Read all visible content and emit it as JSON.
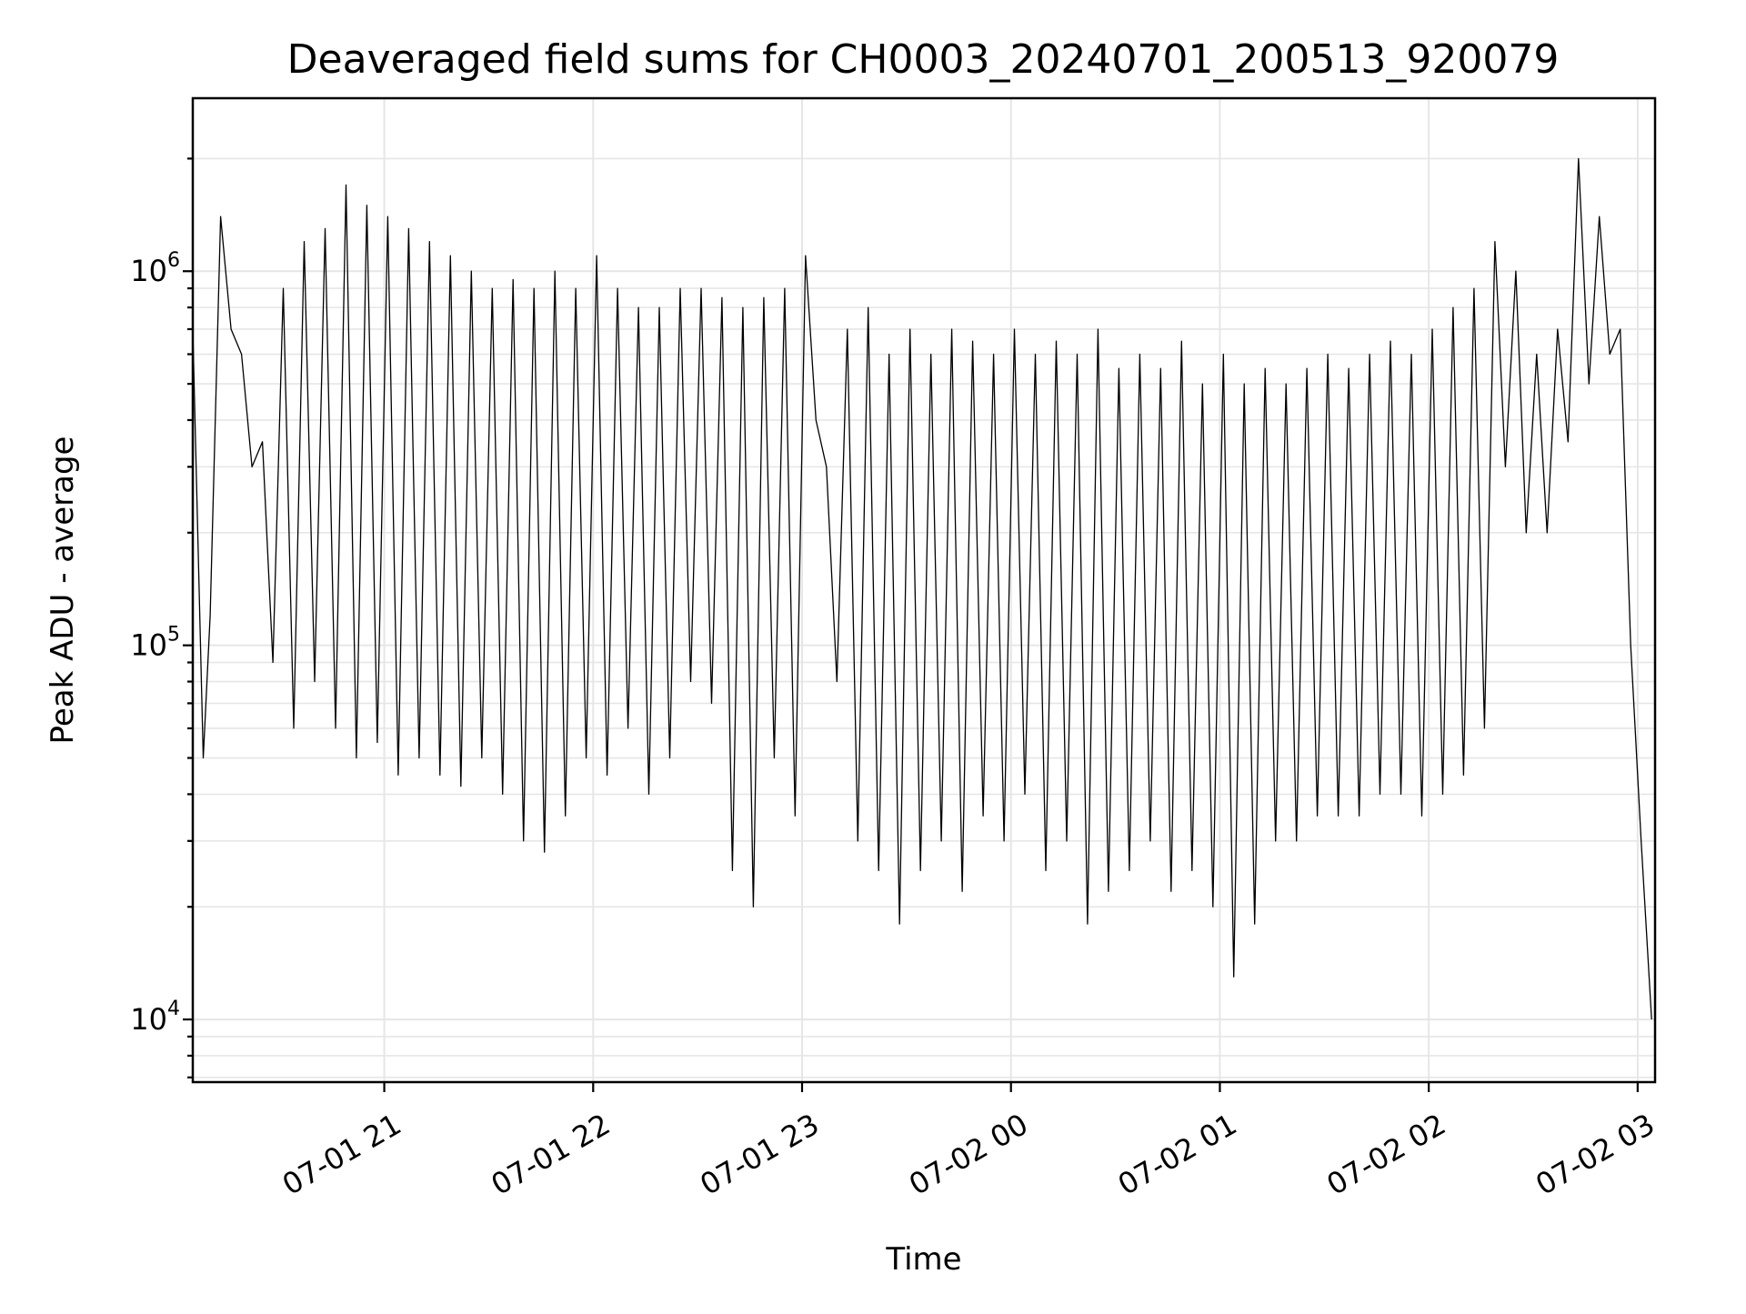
{
  "chart_data": {
    "type": "line",
    "title": "Deaveraged field sums for CH0003_20240701_200513_920079",
    "xlabel": "Time",
    "ylabel": "Peak ADU - average",
    "yscale": "log",
    "grid": true,
    "series_color": "#000000",
    "grid_color": "#e6e6e6",
    "xlim": [
      "2024-07-01 20:05",
      "2024-07-02 03:05"
    ],
    "ylim": [
      6800,
      2900000
    ],
    "x_ticks": [
      {
        "value": "2024-07-01 21:00",
        "label": "07-01 21"
      },
      {
        "value": "2024-07-01 22:00",
        "label": "07-01 22"
      },
      {
        "value": "2024-07-01 23:00",
        "label": "07-01 23"
      },
      {
        "value": "2024-07-02 00:00",
        "label": "07-02 00"
      },
      {
        "value": "2024-07-02 01:00",
        "label": "07-02 01"
      },
      {
        "value": "2024-07-02 02:00",
        "label": "07-02 02"
      },
      {
        "value": "2024-07-02 03:00",
        "label": "07-02 03"
      }
    ],
    "y_ticks": [
      {
        "value": 10000,
        "base": "10",
        "exp": "4"
      },
      {
        "value": 100000,
        "base": "10",
        "exp": "5"
      },
      {
        "value": 1000000,
        "base": "10",
        "exp": "6"
      }
    ],
    "series": [
      {
        "x": [
          "2024-07-01 20:05",
          "2024-07-01 20:08",
          "2024-07-01 20:10",
          "2024-07-01 20:13",
          "2024-07-01 20:16",
          "2024-07-01 20:19",
          "2024-07-01 20:22",
          "2024-07-01 20:25",
          "2024-07-01 20:28",
          "2024-07-01 20:31",
          "2024-07-01 20:34",
          "2024-07-01 20:37",
          "2024-07-01 20:40",
          "2024-07-01 20:43",
          "2024-07-01 20:46",
          "2024-07-01 20:49",
          "2024-07-01 20:52",
          "2024-07-01 20:55",
          "2024-07-01 20:58",
          "2024-07-01 21:01",
          "2024-07-01 21:04",
          "2024-07-01 21:07",
          "2024-07-01 21:10",
          "2024-07-01 21:13",
          "2024-07-01 21:16",
          "2024-07-01 21:19",
          "2024-07-01 21:22",
          "2024-07-01 21:25",
          "2024-07-01 21:28",
          "2024-07-01 21:31",
          "2024-07-01 21:34",
          "2024-07-01 21:37",
          "2024-07-01 21:40",
          "2024-07-01 21:43",
          "2024-07-01 21:46",
          "2024-07-01 21:49",
          "2024-07-01 21:52",
          "2024-07-01 21:55",
          "2024-07-01 21:58",
          "2024-07-01 22:01",
          "2024-07-01 22:04",
          "2024-07-01 22:07",
          "2024-07-01 22:10",
          "2024-07-01 22:13",
          "2024-07-01 22:16",
          "2024-07-01 22:19",
          "2024-07-01 22:22",
          "2024-07-01 22:25",
          "2024-07-01 22:28",
          "2024-07-01 22:31",
          "2024-07-01 22:34",
          "2024-07-01 22:37",
          "2024-07-01 22:40",
          "2024-07-01 22:43",
          "2024-07-01 22:46",
          "2024-07-01 22:49",
          "2024-07-01 22:52",
          "2024-07-01 22:55",
          "2024-07-01 22:58",
          "2024-07-01 23:01",
          "2024-07-01 23:04",
          "2024-07-01 23:07",
          "2024-07-01 23:10",
          "2024-07-01 23:13",
          "2024-07-01 23:16",
          "2024-07-01 23:19",
          "2024-07-01 23:22",
          "2024-07-01 23:25",
          "2024-07-01 23:28",
          "2024-07-01 23:31",
          "2024-07-01 23:34",
          "2024-07-01 23:37",
          "2024-07-01 23:40",
          "2024-07-01 23:43",
          "2024-07-01 23:46",
          "2024-07-01 23:49",
          "2024-07-01 23:52",
          "2024-07-01 23:55",
          "2024-07-01 23:58",
          "2024-07-02 00:01",
          "2024-07-02 00:04",
          "2024-07-02 00:07",
          "2024-07-02 00:10",
          "2024-07-02 00:13",
          "2024-07-02 00:16",
          "2024-07-02 00:19",
          "2024-07-02 00:22",
          "2024-07-02 00:25",
          "2024-07-02 00:28",
          "2024-07-02 00:31",
          "2024-07-02 00:34",
          "2024-07-02 00:37",
          "2024-07-02 00:40",
          "2024-07-02 00:43",
          "2024-07-02 00:46",
          "2024-07-02 00:49",
          "2024-07-02 00:52",
          "2024-07-02 00:55",
          "2024-07-02 00:58",
          "2024-07-02 01:01",
          "2024-07-02 01:04",
          "2024-07-02 01:07",
          "2024-07-02 01:10",
          "2024-07-02 01:13",
          "2024-07-02 01:16",
          "2024-07-02 01:19",
          "2024-07-02 01:22",
          "2024-07-02 01:25",
          "2024-07-02 01:28",
          "2024-07-02 01:31",
          "2024-07-02 01:34",
          "2024-07-02 01:37",
          "2024-07-02 01:40",
          "2024-07-02 01:43",
          "2024-07-02 01:46",
          "2024-07-02 01:49",
          "2024-07-02 01:52",
          "2024-07-02 01:55",
          "2024-07-02 01:58",
          "2024-07-02 02:01",
          "2024-07-02 02:04",
          "2024-07-02 02:07",
          "2024-07-02 02:10",
          "2024-07-02 02:13",
          "2024-07-02 02:16",
          "2024-07-02 02:19",
          "2024-07-02 02:22",
          "2024-07-02 02:25",
          "2024-07-02 02:28",
          "2024-07-02 02:31",
          "2024-07-02 02:34",
          "2024-07-02 02:37",
          "2024-07-02 02:40",
          "2024-07-02 02:43",
          "2024-07-02 02:46",
          "2024-07-02 02:49",
          "2024-07-02 02:52",
          "2024-07-02 02:55",
          "2024-07-02 02:58",
          "2024-07-02 03:01",
          "2024-07-02 03:04"
        ],
        "y": [
          700000,
          50000,
          120000,
          1400000,
          700000,
          600000,
          300000,
          350000,
          90000,
          900000,
          60000,
          1200000,
          80000,
          1300000,
          60000,
          1700000,
          50000,
          1500000,
          55000,
          1400000,
          45000,
          1300000,
          50000,
          1200000,
          45000,
          1100000,
          42000,
          1000000,
          50000,
          900000,
          40000,
          950000,
          30000,
          900000,
          28000,
          1000000,
          35000,
          900000,
          50000,
          1100000,
          45000,
          900000,
          60000,
          800000,
          40000,
          800000,
          50000,
          900000,
          80000,
          900000,
          70000,
          850000,
          25000,
          800000,
          20000,
          850000,
          50000,
          900000,
          35000,
          1100000,
          400000,
          300000,
          80000,
          700000,
          30000,
          800000,
          25000,
          600000,
          18000,
          700000,
          25000,
          600000,
          30000,
          700000,
          22000,
          650000,
          35000,
          600000,
          30000,
          700000,
          40000,
          600000,
          25000,
          650000,
          30000,
          600000,
          18000,
          700000,
          22000,
          550000,
          25000,
          600000,
          30000,
          550000,
          22000,
          650000,
          25000,
          500000,
          20000,
          600000,
          13000,
          500000,
          18000,
          550000,
          30000,
          500000,
          30000,
          550000,
          35000,
          600000,
          35000,
          550000,
          35000,
          600000,
          40000,
          650000,
          40000,
          600000,
          35000,
          700000,
          40000,
          800000,
          45000,
          900000,
          60000,
          1200000,
          300000,
          1000000,
          200000,
          600000,
          200000,
          700000,
          350000,
          2000000,
          500000,
          1400000,
          600000,
          700000,
          100000,
          30000,
          10000
        ]
      }
    ]
  }
}
